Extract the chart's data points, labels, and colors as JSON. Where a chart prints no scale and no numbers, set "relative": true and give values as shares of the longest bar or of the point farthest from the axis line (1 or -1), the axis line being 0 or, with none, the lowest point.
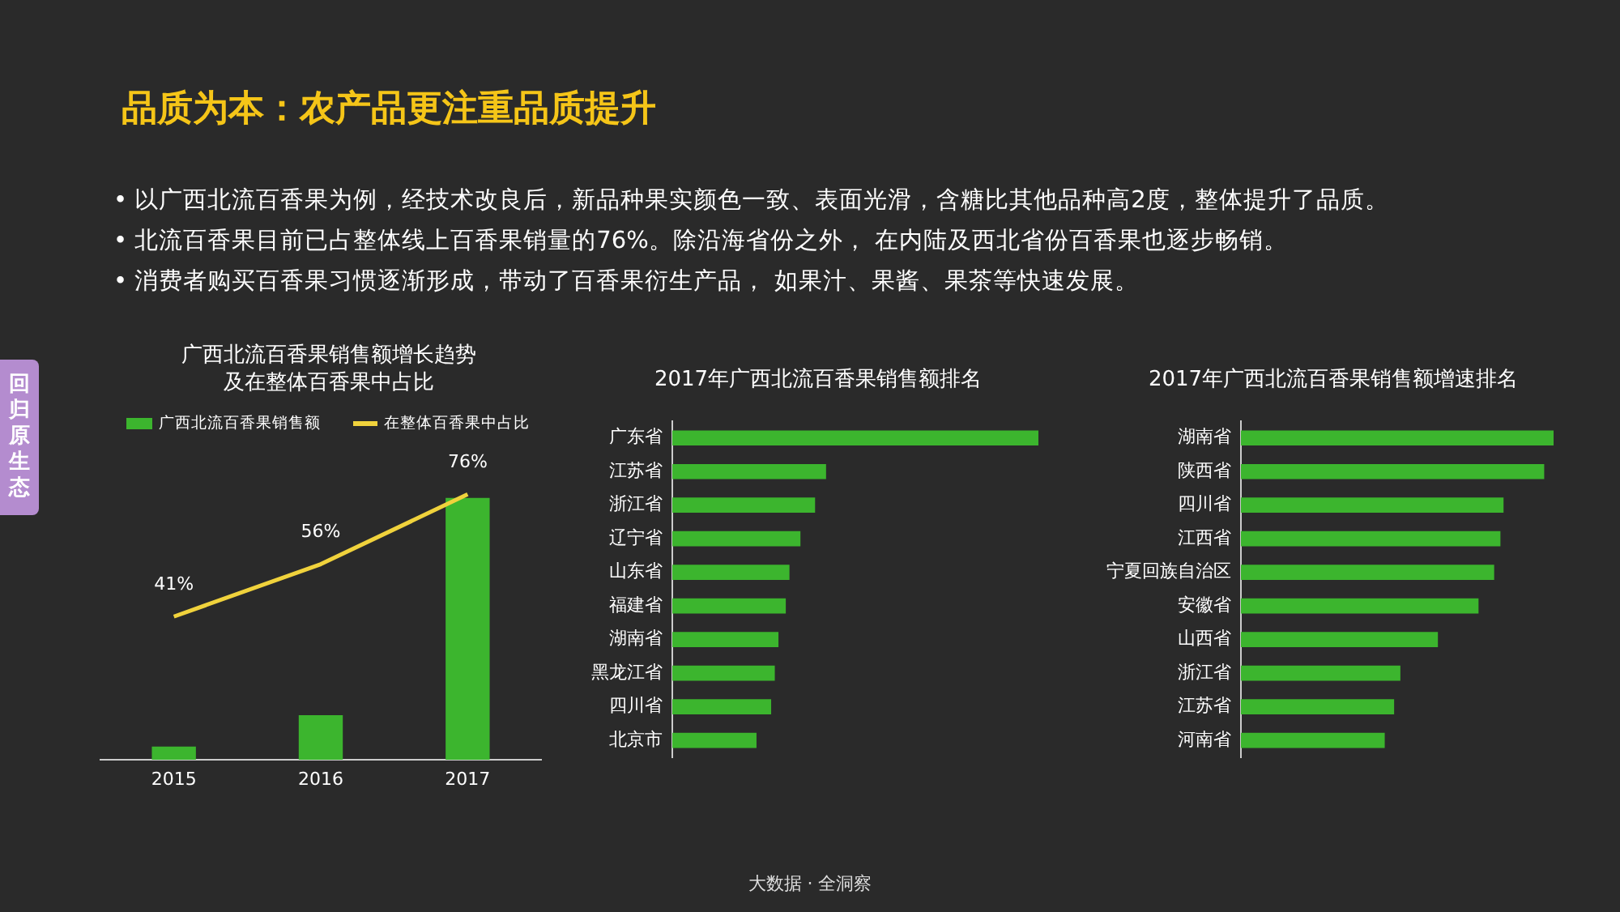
{
  "chart_data": [
    {
      "type": "other",
      "title": "品质为本：农产品更注重品质提升",
      "annotations": [
        "• 以广西北流百香果为例，经技术改良后，新品种果实颜色一致、表面光滑，含糖比其他品种高2度，整体提升了品质。",
        "• 北流百香果目前已占整体线上百香果销量的76%。除沿海省份之外， 在内陆及西北省份百香果也逐步畅销。",
        "• 消费者购买百香果习惯逐渐形成，带动了百香果衍生产品， 如果汁、果酱、果茶等快速发展。",
        "回归原生态",
        "大数据 · 全洞察"
      ]
    },
    {
      "type": "bar",
      "title": "广西北流百香果销售额增长趋势及在整体百香果中占比",
      "categories": [
        "2015",
        "2016",
        "2017"
      ],
      "relative": true,
      "legend": "top",
      "series": [
        {
          "name": "广西北流百香果销售额",
          "color": "#3cb52e",
          "values": [
            0.05,
            0.17,
            1
          ]
        }
      ]
    },
    {
      "type": "line",
      "categories": [
        "2015",
        "2016",
        "2017"
      ],
      "legend": "top",
      "tick_labels": false,
      "series": [
        {
          "name": "在整体百香果中占比",
          "color": "#f0d23c",
          "marker": "none",
          "values": [
            41,
            56,
            76
          ],
          "value_labels": [
            "41%",
            "56%",
            "76%"
          ]
        }
      ]
    },
    {
      "type": "bar",
      "title": "2017年广西北流百香果销售额排名",
      "orientation": "horizontal",
      "relative": true,
      "categories": [
        "广东省",
        "江苏省",
        "浙江省",
        "辽宁省",
        "山东省",
        "福建省",
        "湖南省",
        "黑龙江省",
        "四川省",
        "北京市"
      ],
      "series": [
        {
          "color": "#3cb52e",
          "values": [
            1,
            0.42,
            0.39,
            0.35,
            0.32,
            0.31,
            0.29,
            0.28,
            0.27,
            0.23
          ]
        }
      ]
    },
    {
      "type": "bar",
      "title": "2017年广西北流百香果销售额增速排名",
      "orientation": "horizontal",
      "relative": true,
      "categories": [
        "湖南省",
        "陕西省",
        "四川省",
        "江西省",
        "宁夏回族自治区",
        "安徽省",
        "山西省",
        "浙江省",
        "江苏省",
        "河南省"
      ],
      "series": [
        {
          "color": "#3cb52e",
          "values": [
            1,
            0.97,
            0.84,
            0.83,
            0.81,
            0.76,
            0.63,
            0.51,
            0.49,
            0.46
          ]
        }
      ]
    }
  ]
}
